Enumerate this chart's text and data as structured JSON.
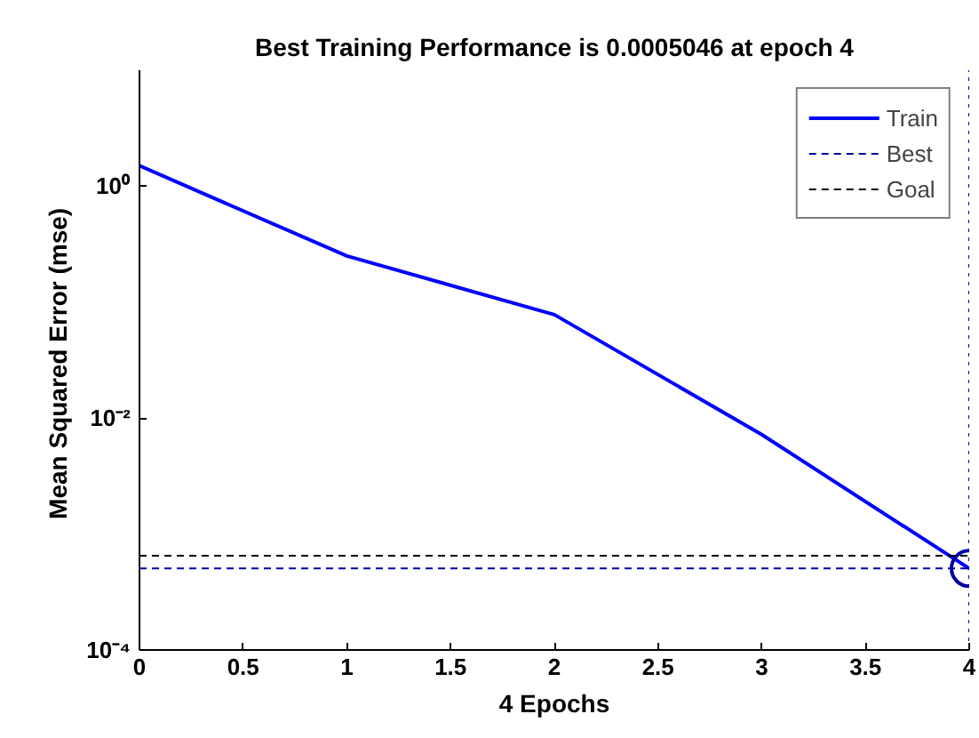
{
  "chart_data": {
    "type": "line",
    "title": "Best Training Performance is 0.0005046 at epoch 4",
    "xlabel": "4 Epochs",
    "ylabel": "Mean Squared Error  (mse)",
    "log": "y",
    "grid": false,
    "legend": "top right",
    "xlim": [
      0,
      4
    ],
    "xticks": [
      0,
      0.5,
      1,
      1.5,
      2,
      2.5,
      3,
      3.5,
      4
    ],
    "ylim": [
      0.0001,
      10
    ],
    "yticks": [
      {
        "value": 0.0001,
        "label": "10⁻⁴"
      },
      {
        "value": 0.01,
        "label": "10⁻²"
      },
      {
        "value": 1,
        "label": "10⁰"
      }
    ],
    "series": [
      {
        "name": "Train",
        "color": "#0000ff",
        "line_style": "solid",
        "x": [
          0,
          1,
          2,
          3,
          4
        ],
        "values": [
          1.5,
          0.25,
          0.078,
          0.0072,
          0.0005046
        ]
      },
      {
        "type": "scatter",
        "marker": "circle",
        "color": "#0000a0",
        "x": [
          4
        ],
        "values": [
          0.0005046
        ]
      }
    ],
    "ref_lines": [
      {
        "axis": "y",
        "value": 0.0005046,
        "label": "Best",
        "color": "#0000a0",
        "line_style": "dashed"
      },
      {
        "axis": "x",
        "value": 4,
        "color": "#0000a0",
        "line_style": "dotted"
      },
      {
        "axis": "y",
        "value": 0.00065,
        "label": "Goal",
        "color": "#000000",
        "line_style": "dashed"
      }
    ]
  }
}
